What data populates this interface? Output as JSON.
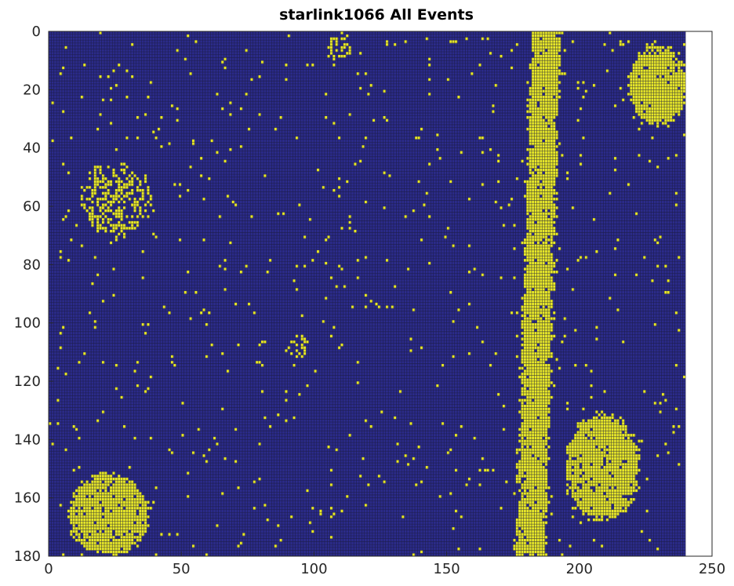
{
  "chart_data": {
    "type": "heatmap",
    "title": "starlink1066 All Events",
    "xlabel": "",
    "ylabel": "",
    "xlim": [
      0,
      250
    ],
    "ylim": [
      0,
      180
    ],
    "y_reversed": true,
    "xticks": [
      0,
      50,
      100,
      150,
      200,
      250
    ],
    "yticks": [
      0,
      20,
      40,
      60,
      80,
      100,
      120,
      140,
      160,
      180
    ],
    "grid": true,
    "data_extent": {
      "cols": 240,
      "rows": 180
    },
    "colors": {
      "background": "#2b2b8a",
      "event": "#e8e829",
      "grid": "#1a1a3a"
    },
    "blobs": [
      {
        "label": "track",
        "type": "vertical_band",
        "y_range": [
          0,
          180
        ],
        "x_center_at_y0": 187,
        "x_center_at_y180": 181,
        "width": 9
      },
      {
        "label": "top-right",
        "cx": 229,
        "cy": 18,
        "rx": 11,
        "ry": 14
      },
      {
        "label": "upper-left",
        "cx": 25,
        "cy": 57,
        "rx": 13,
        "ry": 13,
        "sparse": true
      },
      {
        "label": "top-center",
        "cx": 109,
        "cy": 5,
        "rx": 5,
        "ry": 5,
        "sparse": true
      },
      {
        "label": "bottom-left",
        "cx": 22,
        "cy": 165,
        "rx": 15,
        "ry": 14
      },
      {
        "label": "bottom-right",
        "cx": 208,
        "cy": 149,
        "rx": 14,
        "ry": 18
      },
      {
        "label": "mid-ring",
        "cx": 94,
        "cy": 108,
        "rx": 4,
        "ry": 4,
        "sparse": true
      }
    ],
    "noise_events_approx": 700
  }
}
